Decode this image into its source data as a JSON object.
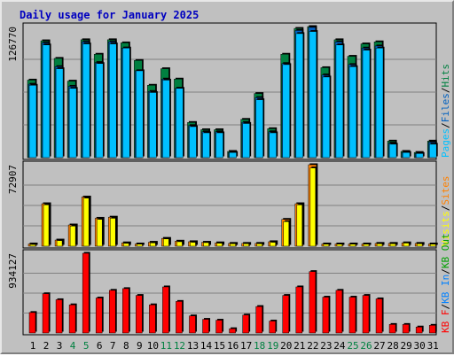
{
  "chart_data": {
    "type": "bar",
    "title": "Daily usage for January 2025",
    "categories": [
      "1",
      "2",
      "3",
      "4",
      "5",
      "6",
      "7",
      "8",
      "9",
      "10",
      "11",
      "12",
      "13",
      "14",
      "15",
      "16",
      "17",
      "18",
      "19",
      "20",
      "21",
      "22",
      "23",
      "24",
      "25",
      "26",
      "27",
      "28",
      "29",
      "30",
      "31"
    ],
    "weekend_days": [
      "4",
      "5",
      "11",
      "12",
      "18",
      "19",
      "25",
      "26"
    ],
    "colors": {
      "pages": "#00c0ff",
      "files": "#0060c0",
      "hits": "#008040",
      "visits": "#ffff00",
      "sites": "#ff8000",
      "kb_f": "#ff0000",
      "kb_in": "#0080ff",
      "kb_out": "#00a000",
      "title": "#0000c0",
      "weekend": "#008040",
      "weekday": "#000000",
      "plot_bg": "#c0c0c0",
      "grid": "#808080"
    },
    "panels": [
      {
        "id": "top",
        "max_label": "126770",
        "ylim": [
          0,
          126770
        ],
        "legend": [
          "Pages",
          "/",
          "Files",
          "/",
          "Hits"
        ],
        "series": [
          {
            "name": "Hits",
            "values": [
              75000,
              113000,
              96000,
              74000,
              114000,
              100000,
              114000,
              111000,
              94000,
              70000,
              86000,
              76000,
              34000,
              27000,
              27000,
              6000,
              37000,
              62000,
              28000,
              100000,
              125000,
              126770,
              87000,
              114000,
              98000,
              110000,
              112000,
              16000,
              6000,
              5000,
              16000
            ]
          },
          {
            "name": "Files",
            "values": [
              71000,
              111000,
              88000,
              69000,
              112000,
              92000,
              112000,
              106000,
              84000,
              64000,
              76000,
              67000,
              31000,
              25000,
              25000,
              5000,
              34000,
              58000,
              25000,
              91000,
              123000,
              126000,
              80000,
              112000,
              90000,
              106000,
              108000,
              14000,
              5000,
              4000,
              15000
            ]
          },
          {
            "name": "Pages",
            "values": [
              70000,
              109000,
              86000,
              67000,
              110000,
              91000,
              110000,
              106000,
              84000,
              63000,
              75000,
              67000,
              30000,
              24000,
              24000,
              5000,
              33000,
              56000,
              24000,
              90000,
              120000,
              122000,
              78000,
              109000,
              88000,
              104000,
              106000,
              13000,
              5000,
              4000,
              13000
            ]
          }
        ]
      },
      {
        "id": "middle",
        "max_label": "72907",
        "ylim": [
          0,
          72907
        ],
        "legend": [
          "Visits",
          "/",
          "Sites"
        ],
        "series": [
          {
            "name": "Sites",
            "values": [
              2000,
              38000,
              5500,
              19000,
              44000,
              25000,
              26000,
              3000,
              2000,
              3500,
              7000,
              4500,
              4000,
              3500,
              3000,
              2500,
              2500,
              2500,
              4000,
              24000,
              38000,
              72907,
              2000,
              2000,
              2000,
              2000,
              2500,
              2500,
              3000,
              2500,
              2000
            ]
          },
          {
            "name": "Visits",
            "values": [
              1500,
              37000,
              5000,
              18000,
              43000,
              24000,
              25000,
              2500,
              1800,
              3000,
              6500,
              4000,
              3500,
              3200,
              2700,
              2200,
              2200,
              2200,
              3500,
              22000,
              37000,
              70000,
              1800,
              1800,
              1800,
              1800,
              2200,
              2200,
              2800,
              2200,
              1800
            ]
          }
        ]
      },
      {
        "id": "bottom",
        "max_label": "934127",
        "ylim": [
          0,
          934127
        ],
        "legend": [
          "KB F",
          "/",
          "KB In",
          "/",
          "KB Out"
        ],
        "series": [
          {
            "name": "KB F",
            "values": [
              240000,
              460000,
              390000,
              330000,
              934127,
              410000,
              500000,
              520000,
              440000,
              330000,
              540000,
              370000,
              200000,
              160000,
              150000,
              50000,
              210000,
              310000,
              140000,
              440000,
              540000,
              720000,
              420000,
              500000,
              420000,
              440000,
              400000,
              100000,
              100000,
              70000,
              90000
            ]
          }
        ]
      }
    ]
  }
}
